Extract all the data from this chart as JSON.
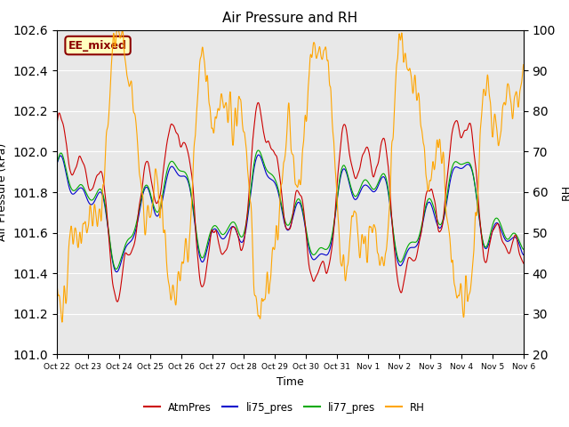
{
  "title": "Air Pressure and RH",
  "ylabel_left": "Air Pressure (kPa)",
  "ylabel_right": "RH",
  "xlabel": "Time",
  "ylim_left": [
    101.0,
    102.6
  ],
  "ylim_right": [
    20,
    100
  ],
  "annotation": "EE_mixed",
  "annotation_color": "#8B0000",
  "annotation_bg": "#FFFFC0",
  "fig_bg_color": "#FFFFFF",
  "plot_bg_color": "#E8E8E8",
  "line_colors": {
    "AtmPres": "#CC0000",
    "li75_pres": "#0000CC",
    "li77_pres": "#00AA00",
    "RH": "#FFA500"
  },
  "xtick_labels": [
    "Oct 22",
    "Oct 23",
    "Oct 24",
    "Oct 25",
    "Oct 26",
    "Oct 27",
    "Oct 28",
    "Oct 29",
    "Oct 30",
    "Oct 31",
    "Nov 1",
    "Nov 2",
    "Nov 3",
    "Nov 4",
    "Nov 5",
    "Nov 6"
  ],
  "n_points": 1440,
  "seed": 42
}
